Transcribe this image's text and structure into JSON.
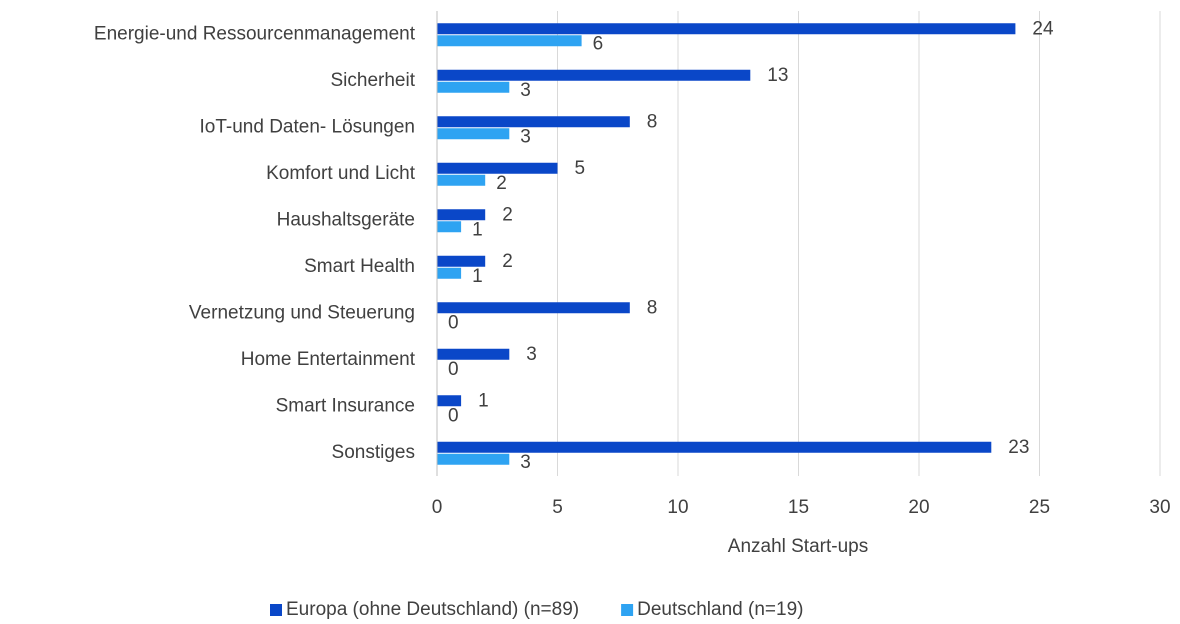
{
  "chart_data": {
    "type": "barh",
    "categories": [
      "Energie-und Ressourcenmanagement",
      "Sicherheit",
      "IoT-und Daten- Lösungen",
      "Komfort und Licht",
      "Haushaltsgeräte",
      "Smart Health",
      "Vernetzung und Steuerung",
      "Home Entertainment",
      "Smart Insurance",
      "Sonstiges"
    ],
    "series": [
      {
        "name": "Europa (ohne Deutschland) (n=89)",
        "color": "#0a47c8",
        "values": [
          24,
          13,
          8,
          5,
          2,
          2,
          8,
          3,
          1,
          23
        ]
      },
      {
        "name": "Deutschland (n=19)",
        "color": "#2ea3f2",
        "values": [
          6,
          3,
          3,
          2,
          1,
          1,
          0,
          0,
          0,
          3
        ]
      }
    ],
    "x_label": "Anzahl Start-ups",
    "xlim": [
      0,
      30
    ],
    "xticks": [
      0,
      5,
      10,
      15,
      20,
      25,
      30
    ],
    "grid": true,
    "legend": "bottom"
  }
}
